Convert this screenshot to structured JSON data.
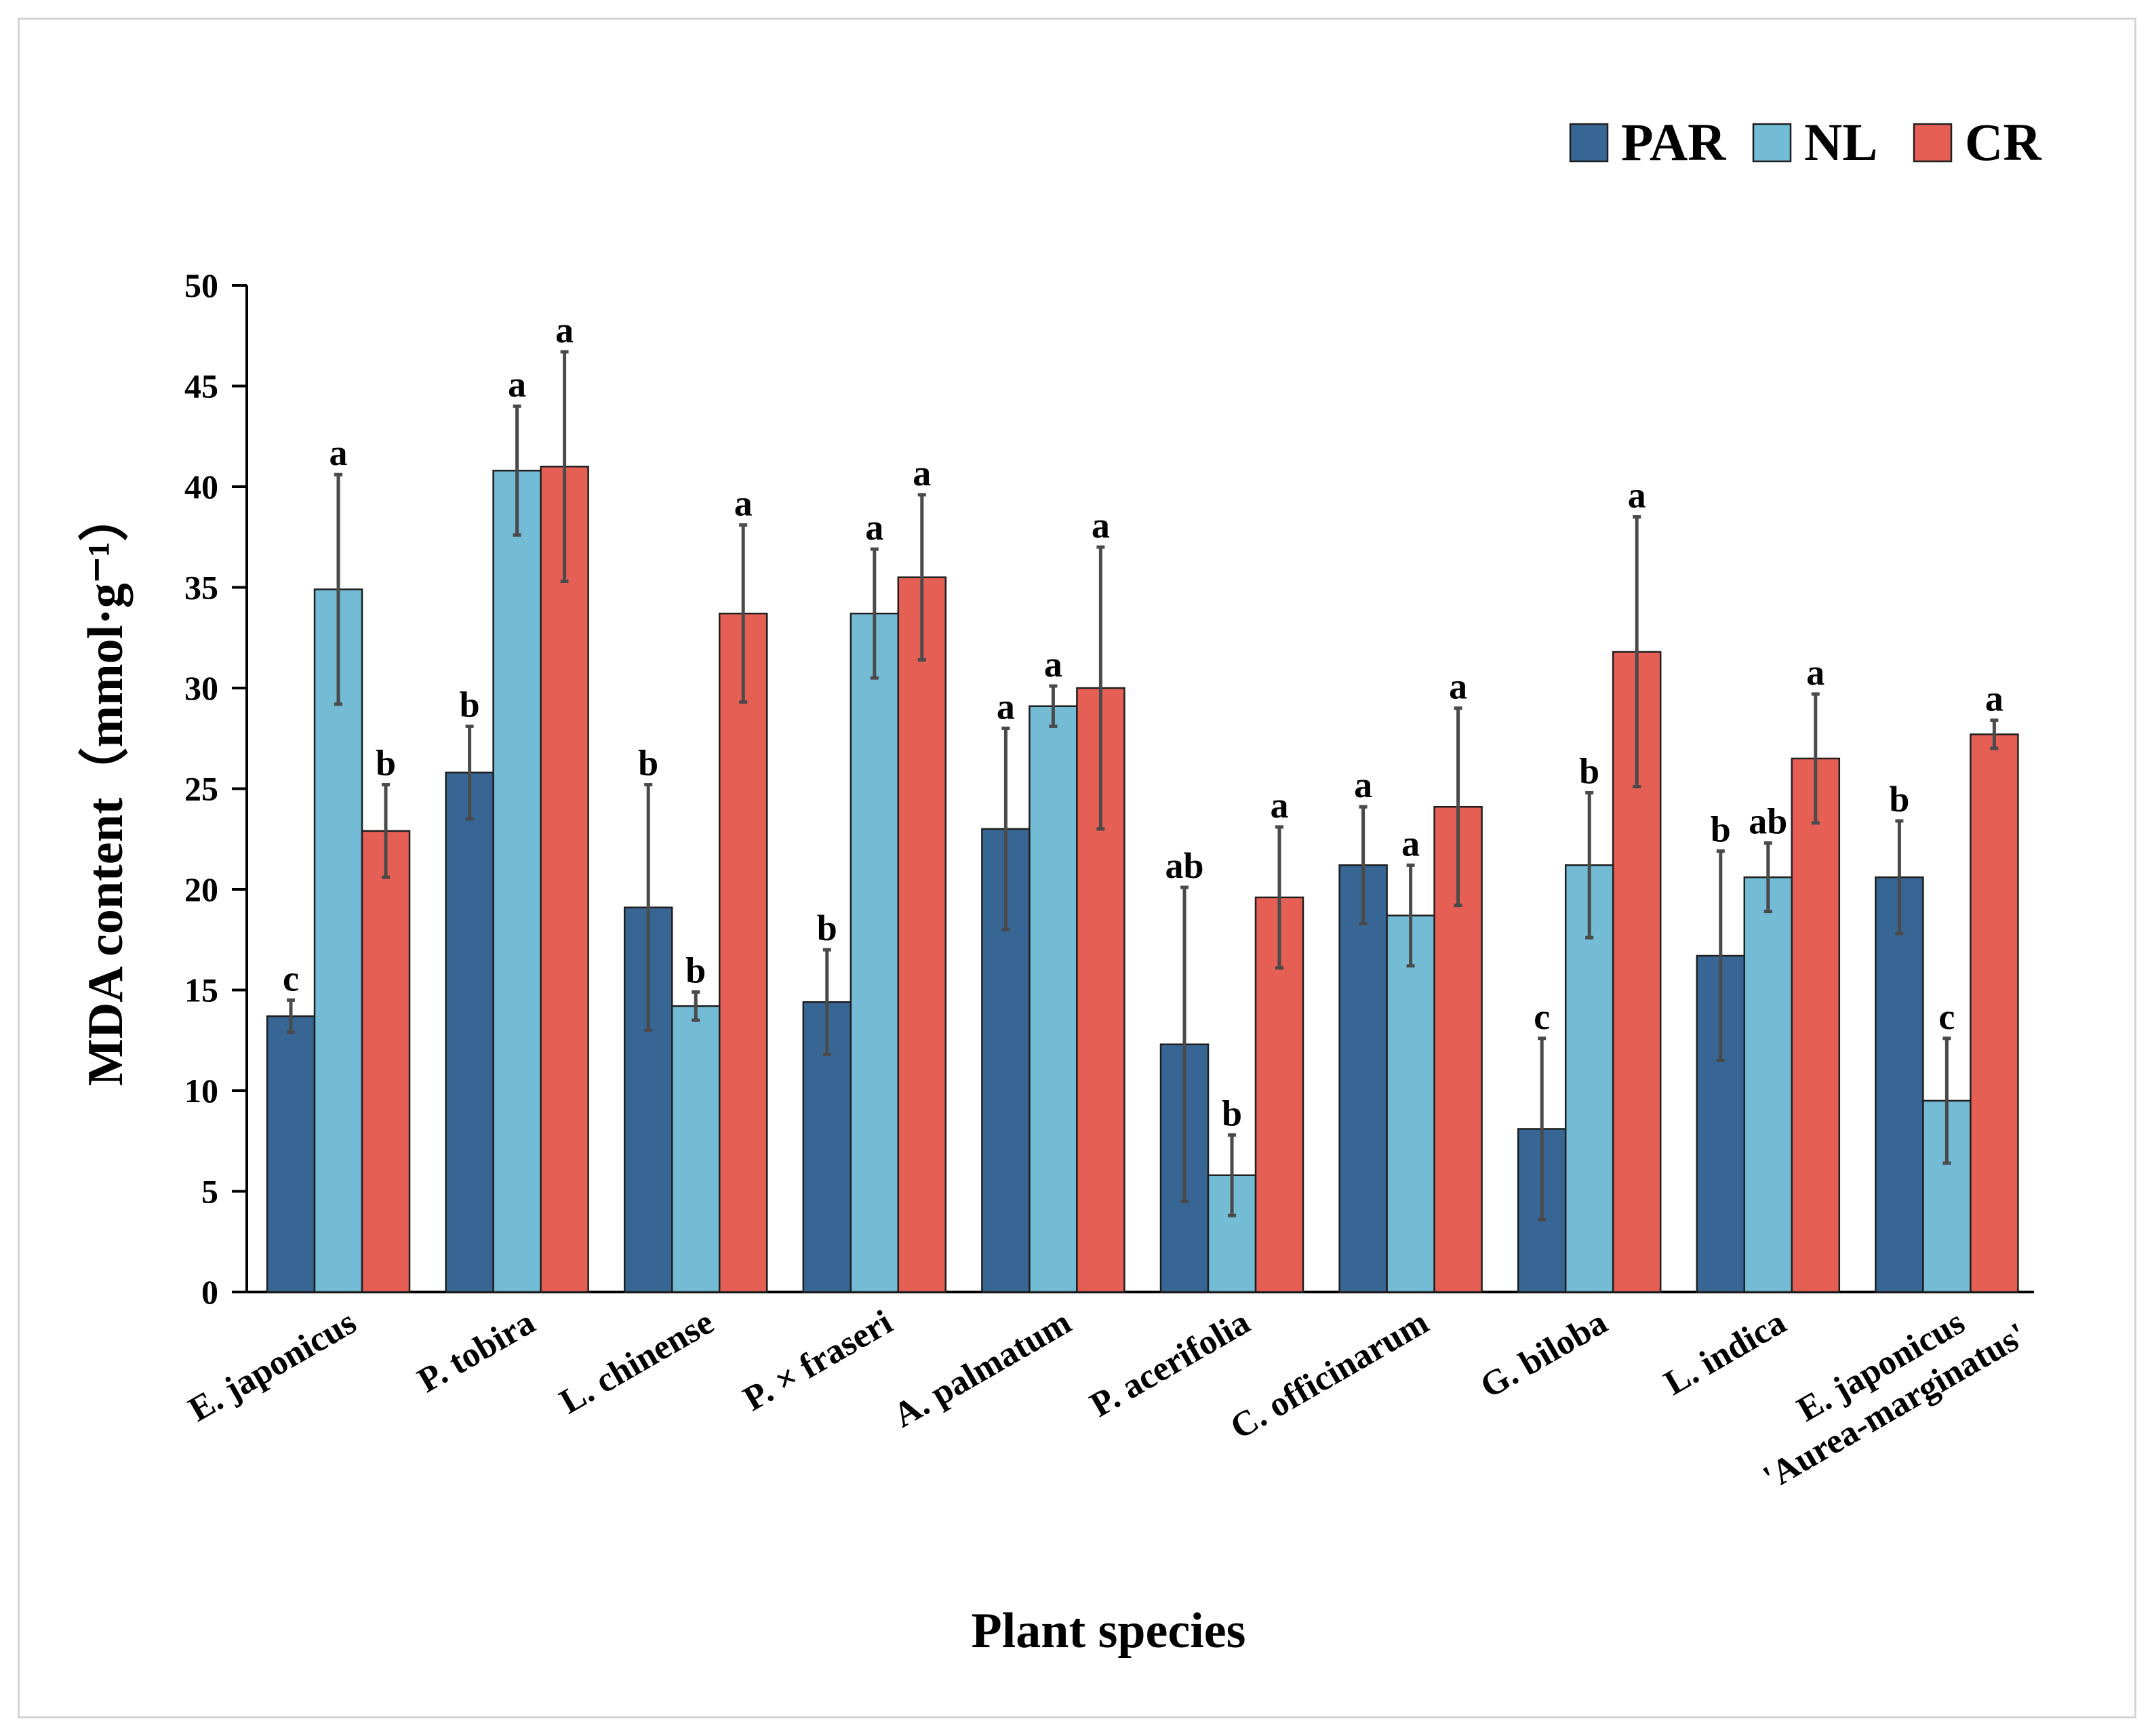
{
  "chart_data": {
    "type": "bar",
    "title": "",
    "xlabel": "Plant species",
    "ylabel": "MDA content（mmol·g⁻¹）",
    "ylim": [
      0,
      50
    ],
    "yticks": [
      "0",
      "5",
      "10",
      "15",
      "20",
      "25",
      "30",
      "35",
      "40",
      "45",
      "50"
    ],
    "legend_position": "top-right",
    "categories": [
      [
        "E. japonicus"
      ],
      [
        "P. tobira"
      ],
      [
        "L. chinense"
      ],
      [
        "P. × fraseri"
      ],
      [
        "A. palmatum"
      ],
      [
        "P. acerifolia"
      ],
      [
        "C. officinarum"
      ],
      [
        "G. biloba"
      ],
      [
        "L. indica"
      ],
      [
        "E. japonicus",
        "'Aurea-marginatus'"
      ]
    ],
    "series": [
      {
        "name": "PAR",
        "color": "#376694",
        "values": [
          13.7,
          25.8,
          19.1,
          14.4,
          23.0,
          12.3,
          21.2,
          8.1,
          16.7,
          20.6
        ],
        "errors": [
          0.8,
          2.3,
          6.1,
          2.6,
          5.0,
          7.8,
          2.9,
          4.5,
          5.2,
          2.8
        ],
        "letters": [
          "c",
          "b",
          "b",
          "b",
          "a",
          "ab",
          "a",
          "c",
          "b",
          "b"
        ]
      },
      {
        "name": "NL",
        "color": "#74bbd6",
        "values": [
          34.9,
          40.8,
          14.2,
          33.7,
          29.1,
          5.8,
          18.7,
          21.2,
          20.6,
          9.5
        ],
        "errors": [
          5.7,
          3.2,
          0.7,
          3.2,
          1.0,
          2.0,
          2.5,
          3.6,
          1.7,
          3.1
        ],
        "letters": [
          "a",
          "a",
          "b",
          "a",
          "a",
          "b",
          "a",
          "b",
          "ab",
          "c"
        ]
      },
      {
        "name": "CR",
        "color": "#e65f55",
        "values": [
          22.9,
          41.0,
          33.7,
          35.5,
          30.0,
          19.6,
          24.1,
          31.8,
          26.5,
          27.7
        ],
        "errors": [
          2.3,
          5.7,
          4.4,
          4.1,
          7.0,
          3.5,
          4.9,
          6.7,
          3.2,
          0.7
        ],
        "letters": [
          "b",
          "a",
          "a",
          "a",
          "a",
          "a",
          "a",
          "a",
          "a",
          "a"
        ]
      }
    ]
  }
}
